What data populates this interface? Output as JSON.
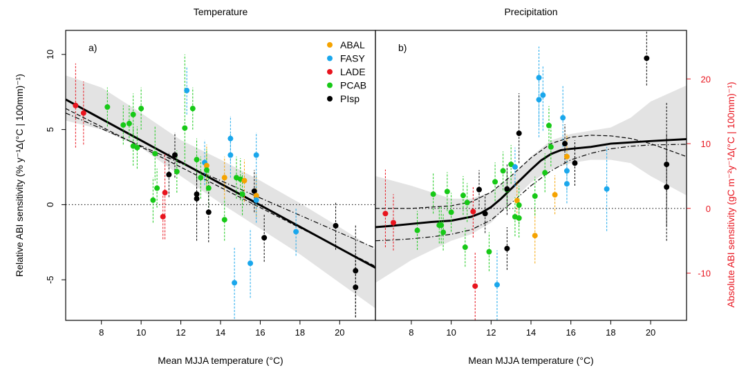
{
  "colors": {
    "ABAL": "#f5a300",
    "FASY": "#1aa7ec",
    "LADE": "#e8141e",
    "PCAB": "#17c917",
    "PIsp": "#000000",
    "right_axis": "#e8141e",
    "band": "#e3e3e3"
  },
  "chart_data": [
    {
      "type": "scatter",
      "panel": "a)",
      "title": "Temperature",
      "xlabel": "Mean MJJA temperature (°C)",
      "ylabel": "Relative ABI sensitivity (% y⁻¹Δ(°C | 100mm)⁻¹)",
      "xlim": [
        6.2,
        21.8
      ],
      "ylim": [
        -7.7,
        11.6
      ],
      "xticks": [
        8,
        10,
        12,
        14,
        16,
        18,
        20
      ],
      "yticks": [
        -5,
        0,
        5,
        10
      ],
      "reference_line_y": 0,
      "legend": {
        "position": "top-right",
        "entries": [
          "ABAL",
          "FASY",
          "LADE",
          "PCAB",
          "PIsp"
        ]
      },
      "points": [
        {
          "s": "LADE",
          "x": 6.7,
          "y": 6.6,
          "lo": 3.8,
          "hi": 9.4
        },
        {
          "s": "LADE",
          "x": 7.1,
          "y": 6.1,
          "lo": 4.0,
          "hi": 8.2
        },
        {
          "s": "PCAB",
          "x": 8.3,
          "y": 6.5,
          "lo": 5.2,
          "hi": 7.8
        },
        {
          "s": "PCAB",
          "x": 9.1,
          "y": 5.3,
          "lo": 4.0,
          "hi": 6.6
        },
        {
          "s": "PCAB",
          "x": 9.4,
          "y": 5.4,
          "lo": 4.2,
          "hi": 6.6
        },
        {
          "s": "PCAB",
          "x": 9.6,
          "y": 6.0,
          "lo": 4.6,
          "hi": 7.4
        },
        {
          "s": "PCAB",
          "x": 9.8,
          "y": 3.8,
          "lo": 2.4,
          "hi": 5.2
        },
        {
          "s": "PCAB",
          "x": 9.6,
          "y": 3.9,
          "lo": 2.6,
          "hi": 5.2
        },
        {
          "s": "PCAB",
          "x": 10.0,
          "y": 6.4,
          "lo": 5.0,
          "hi": 7.8
        },
        {
          "s": "PCAB",
          "x": 10.7,
          "y": 3.4,
          "lo": 1.6,
          "hi": 5.2
        },
        {
          "s": "PCAB",
          "x": 10.6,
          "y": 0.3,
          "lo": -1.2,
          "hi": 1.8
        },
        {
          "s": "PCAB",
          "x": 10.8,
          "y": 1.1,
          "lo": -0.2,
          "hi": 2.4
        },
        {
          "s": "LADE",
          "x": 11.1,
          "y": -0.8,
          "lo": -2.3,
          "hi": 0.7
        },
        {
          "s": "LADE",
          "x": 11.2,
          "y": 0.8,
          "lo": -2.3,
          "hi": 3.4
        },
        {
          "s": "PIsp",
          "x": 11.4,
          "y": 2.0,
          "lo": 0.5,
          "hi": 3.5
        },
        {
          "s": "PIsp",
          "x": 11.7,
          "y": 3.3,
          "lo": 1.8,
          "hi": 4.8
        },
        {
          "s": "PCAB",
          "x": 11.8,
          "y": 2.2,
          "lo": 0.8,
          "hi": 3.6
        },
        {
          "s": "FASY",
          "x": 12.3,
          "y": 7.6,
          "lo": 6.0,
          "hi": 9.2
        },
        {
          "s": "PCAB",
          "x": 12.2,
          "y": 5.1,
          "lo": 2.6,
          "hi": 10.0
        },
        {
          "s": "PCAB",
          "x": 12.6,
          "y": 6.4,
          "lo": 5.0,
          "hi": 7.8
        },
        {
          "s": "PCAB",
          "x": 12.8,
          "y": 3.0,
          "lo": 1.6,
          "hi": 4.4
        },
        {
          "s": "PIsp",
          "x": 12.8,
          "y": 0.7,
          "lo": -2.4,
          "hi": 2.2
        },
        {
          "s": "PIsp",
          "x": 12.8,
          "y": 0.4,
          "lo": -1.0,
          "hi": 1.8
        },
        {
          "s": "PCAB",
          "x": 13.0,
          "y": 1.8,
          "lo": 0.4,
          "hi": 3.2
        },
        {
          "s": "FASY",
          "x": 13.2,
          "y": 2.8,
          "lo": 1.3,
          "hi": 4.3
        },
        {
          "s": "ABAL",
          "x": 13.3,
          "y": 2.6,
          "lo": 1.2,
          "hi": 4.0
        },
        {
          "s": "PCAB",
          "x": 13.3,
          "y": 2.3,
          "lo": 0.9,
          "hi": 3.7
        },
        {
          "s": "PCAB",
          "x": 13.4,
          "y": 1.1,
          "lo": -0.2,
          "hi": 2.4
        },
        {
          "s": "PIsp",
          "x": 13.4,
          "y": -0.5,
          "lo": -2.5,
          "hi": 1.5
        },
        {
          "s": "ABAL",
          "x": 14.2,
          "y": 1.8,
          "lo": 0.4,
          "hi": 3.2
        },
        {
          "s": "PCAB",
          "x": 14.2,
          "y": -1.0,
          "lo": -2.4,
          "hi": 0.4
        },
        {
          "s": "FASY",
          "x": 14.5,
          "y": 4.4,
          "lo": 2.9,
          "hi": 5.9
        },
        {
          "s": "FASY",
          "x": 14.5,
          "y": 3.3,
          "lo": 1.8,
          "hi": 4.8
        },
        {
          "s": "PCAB",
          "x": 14.8,
          "y": 1.8,
          "lo": 0.4,
          "hi": 3.2
        },
        {
          "s": "FASY",
          "x": 14.7,
          "y": -5.2,
          "lo": -7.6,
          "hi": -2.8
        },
        {
          "s": "PCAB",
          "x": 15.0,
          "y": 1.7,
          "lo": 0.3,
          "hi": 3.1
        },
        {
          "s": "PCAB",
          "x": 15.1,
          "y": 0.7,
          "lo": -0.7,
          "hi": 2.1
        },
        {
          "s": "ABAL",
          "x": 15.2,
          "y": 1.6,
          "lo": 0.2,
          "hi": 3.0
        },
        {
          "s": "FASY",
          "x": 15.5,
          "y": -3.9,
          "lo": -6.2,
          "hi": -1.6
        },
        {
          "s": "PIsp",
          "x": 15.7,
          "y": 0.9,
          "lo": -0.5,
          "hi": 2.3
        },
        {
          "s": "ABAL",
          "x": 15.8,
          "y": 0.6,
          "lo": -0.8,
          "hi": 2.0
        },
        {
          "s": "FASY",
          "x": 15.8,
          "y": 0.3,
          "lo": -1.2,
          "hi": 1.8
        },
        {
          "s": "FASY",
          "x": 15.8,
          "y": 3.3,
          "lo": 1.8,
          "hi": 4.8
        },
        {
          "s": "PIsp",
          "x": 16.2,
          "y": -2.2,
          "lo": -3.8,
          "hi": -0.6
        },
        {
          "s": "FASY",
          "x": 17.8,
          "y": -1.8,
          "lo": -3.4,
          "hi": -0.2
        },
        {
          "s": "PIsp",
          "x": 19.8,
          "y": -1.4,
          "lo": -3.0,
          "hi": 0.2
        },
        {
          "s": "PIsp",
          "x": 20.8,
          "y": -4.4,
          "lo": -7.5,
          "hi": -1.3
        },
        {
          "s": "PIsp",
          "x": 20.8,
          "y": -5.5,
          "lo": -7.5,
          "hi": -3.5
        }
      ],
      "fit": {
        "x": [
          6.2,
          21.8
        ],
        "y": [
          7.0,
          -4.2
        ]
      },
      "band_upper": {
        "x": [
          6.2,
          8,
          10,
          12,
          14,
          16,
          18,
          20,
          21.8
        ],
        "y": [
          8.6,
          7.8,
          6.1,
          4.3,
          3.0,
          1.6,
          0.1,
          -1.5,
          -3.0
        ]
      },
      "band_lower": {
        "x": [
          6.2,
          8,
          10,
          12,
          14,
          16,
          18,
          20,
          21.8
        ],
        "y": [
          5.6,
          5.0,
          3.8,
          1.9,
          0.1,
          -1.6,
          -3.3,
          -5.2,
          -6.9
        ]
      },
      "dashed": {
        "x": [
          6.2,
          21.8
        ],
        "y": [
          6.4,
          -4.1
        ]
      },
      "dashdot": {
        "x": [
          6.2,
          21.8
        ],
        "y": [
          6.1,
          -2.9
        ]
      }
    },
    {
      "type": "scatter",
      "panel": "b)",
      "title": "Precipitation",
      "xlabel": "Mean MJJA temperature (°C)",
      "ylabel_right": "Absolute ABI sensitivity (gC m⁻²y⁻¹Δ(°C | 100mm)⁻¹)",
      "xlim": [
        6.2,
        21.8
      ],
      "ylim": [
        -17.3,
        27.5
      ],
      "xticks": [
        8,
        10,
        12,
        14,
        16,
        18,
        20
      ],
      "yticks_right": [
        -10,
        0,
        10,
        20
      ],
      "reference_line_y": 0,
      "points": [
        {
          "s": "LADE",
          "x": 6.7,
          "y": -0.8,
          "lo": -6.0,
          "hi": 6.0
        },
        {
          "s": "LADE",
          "x": 7.1,
          "y": -2.2,
          "lo": -6.5,
          "hi": 2.2
        },
        {
          "s": "PCAB",
          "x": 8.3,
          "y": -3.4,
          "lo": -6.4,
          "hi": -0.4
        },
        {
          "s": "PCAB",
          "x": 9.1,
          "y": 2.2,
          "lo": -0.8,
          "hi": 5.5
        },
        {
          "s": "PCAB",
          "x": 9.4,
          "y": -2.6,
          "lo": -5.4,
          "hi": 0.2
        },
        {
          "s": "PCAB",
          "x": 9.5,
          "y": -2.6,
          "lo": -5.4,
          "hi": 0.2
        },
        {
          "s": "PCAB",
          "x": 9.6,
          "y": -3.7,
          "lo": -6.5,
          "hi": -0.9
        },
        {
          "s": "PCAB",
          "x": 9.8,
          "y": 2.6,
          "lo": -0.4,
          "hi": 5.6
        },
        {
          "s": "PCAB",
          "x": 10.0,
          "y": -0.6,
          "lo": -3.6,
          "hi": 2.4
        },
        {
          "s": "PCAB",
          "x": 10.6,
          "y": 2.0,
          "lo": -1.0,
          "hi": 5.0
        },
        {
          "s": "PCAB",
          "x": 10.7,
          "y": -6.0,
          "lo": -9.0,
          "hi": -3.0
        },
        {
          "s": "PCAB",
          "x": 10.8,
          "y": 0.9,
          "lo": -2.1,
          "hi": 3.9
        },
        {
          "s": "LADE",
          "x": 11.1,
          "y": -0.5,
          "lo": -4.5,
          "hi": 3.5
        },
        {
          "s": "LADE",
          "x": 11.2,
          "y": -12.0,
          "lo": -17.3,
          "hi": -6.8
        },
        {
          "s": "PIsp",
          "x": 11.4,
          "y": 2.9,
          "lo": -0.1,
          "hi": 5.9
        },
        {
          "s": "PIsp",
          "x": 11.7,
          "y": -0.8,
          "lo": -3.8,
          "hi": 2.2
        },
        {
          "s": "PCAB",
          "x": 11.9,
          "y": -6.7,
          "lo": -9.7,
          "hi": -3.7
        },
        {
          "s": "PCAB",
          "x": 12.2,
          "y": 4.1,
          "lo": 1.1,
          "hi": 7.1
        },
        {
          "s": "FASY",
          "x": 12.3,
          "y": -11.8,
          "lo": -17.3,
          "hi": -6.5
        },
        {
          "s": "PCAB",
          "x": 12.6,
          "y": 5.8,
          "lo": 2.8,
          "hi": 8.8
        },
        {
          "s": "PCAB",
          "x": 12.8,
          "y": 2.9,
          "lo": -0.1,
          "hi": 5.9
        },
        {
          "s": "PIsp",
          "x": 12.8,
          "y": 3.0,
          "lo": -1.0,
          "hi": 7.0
        },
        {
          "s": "PIsp",
          "x": 12.8,
          "y": -6.2,
          "lo": -9.5,
          "hi": -2.9
        },
        {
          "s": "PCAB",
          "x": 13.0,
          "y": 6.8,
          "lo": 3.8,
          "hi": 9.8
        },
        {
          "s": "FASY",
          "x": 13.2,
          "y": 6.4,
          "lo": 3.4,
          "hi": 9.4
        },
        {
          "s": "PCAB",
          "x": 13.2,
          "y": -1.3,
          "lo": -4.3,
          "hi": 1.7
        },
        {
          "s": "ABAL",
          "x": 13.3,
          "y": 1.2,
          "lo": -1.8,
          "hi": 4.2
        },
        {
          "s": "PCAB",
          "x": 13.4,
          "y": -1.5,
          "lo": -4.5,
          "hi": 1.5
        },
        {
          "s": "PCAB",
          "x": 13.4,
          "y": 0.5,
          "lo": -2.5,
          "hi": 3.5
        },
        {
          "s": "PIsp",
          "x": 13.4,
          "y": 11.6,
          "lo": 7.0,
          "hi": 17.8
        },
        {
          "s": "ABAL",
          "x": 14.2,
          "y": -4.2,
          "lo": -8.5,
          "hi": 0.1
        },
        {
          "s": "PCAB",
          "x": 14.2,
          "y": 1.9,
          "lo": -1.1,
          "hi": 4.9
        },
        {
          "s": "FASY",
          "x": 14.4,
          "y": 20.2,
          "lo": 13.0,
          "hi": 25.0
        },
        {
          "s": "FASY",
          "x": 14.4,
          "y": 16.8,
          "lo": 11.0,
          "hi": 21.0
        },
        {
          "s": "FASY",
          "x": 14.6,
          "y": 17.5,
          "lo": 12.0,
          "hi": 22.0
        },
        {
          "s": "PCAB",
          "x": 14.7,
          "y": 5.5,
          "lo": 2.5,
          "hi": 8.5
        },
        {
          "s": "PCAB",
          "x": 14.9,
          "y": 12.8,
          "lo": 9.8,
          "hi": 15.8
        },
        {
          "s": "PCAB",
          "x": 15.0,
          "y": 9.5,
          "lo": 6.5,
          "hi": 12.5
        },
        {
          "s": "ABAL",
          "x": 15.2,
          "y": 2.1,
          "lo": -0.9,
          "hi": 5.1
        },
        {
          "s": "FASY",
          "x": 15.6,
          "y": 14.0,
          "lo": 9.5,
          "hi": 19.0
        },
        {
          "s": "PIsp",
          "x": 15.7,
          "y": 10.0,
          "lo": 7.0,
          "hi": 13.0
        },
        {
          "s": "ABAL",
          "x": 15.8,
          "y": 8.0,
          "lo": 4.5,
          "hi": 11.5
        },
        {
          "s": "FASY",
          "x": 15.8,
          "y": 5.8,
          "lo": 2.8,
          "hi": 8.8
        },
        {
          "s": "FASY",
          "x": 15.8,
          "y": 3.8,
          "lo": 0.8,
          "hi": 6.8
        },
        {
          "s": "PIsp",
          "x": 16.2,
          "y": 7.0,
          "lo": 3.5,
          "hi": 10.5
        },
        {
          "s": "FASY",
          "x": 17.8,
          "y": 3.0,
          "lo": -3.5,
          "hi": 9.5
        },
        {
          "s": "PIsp",
          "x": 19.8,
          "y": 23.2,
          "lo": 19.0,
          "hi": 27.5
        },
        {
          "s": "PIsp",
          "x": 20.8,
          "y": 6.8,
          "lo": -2.7,
          "hi": 16.3
        },
        {
          "s": "PIsp",
          "x": 20.8,
          "y": 3.3,
          "lo": -5.0,
          "hi": 11.6
        }
      ],
      "fit": {
        "x": [
          6.2,
          7,
          8,
          9,
          10,
          11,
          11.5,
          12,
          12.5,
          13,
          13.5,
          14,
          14.5,
          15,
          15.5,
          16,
          17,
          18,
          19,
          20,
          21.8
        ],
        "y": [
          -2.9,
          -2.7,
          -2.4,
          -2.1,
          -1.9,
          -1.3,
          -0.7,
          0.2,
          1.5,
          3.0,
          4.5,
          6.0,
          7.4,
          8.4,
          9.0,
          9.2,
          9.5,
          10.0,
          10.2,
          10.4,
          10.7
        ]
      },
      "band_upper": {
        "x": [
          6.2,
          8,
          10,
          11,
          12,
          13,
          14,
          15,
          16,
          17,
          18,
          19,
          20,
          21.8
        ],
        "y": [
          5.0,
          3.5,
          1.5,
          1.5,
          2.5,
          5.0,
          8.0,
          10.5,
          11.5,
          12.0,
          12.5,
          14.0,
          16.5,
          19.0
        ]
      },
      "band_lower": {
        "x": [
          6.2,
          8,
          10,
          11,
          12,
          13,
          14,
          15,
          16,
          17,
          18,
          19,
          20,
          21.8
        ],
        "y": [
          -11.5,
          -8.0,
          -5.0,
          -4.0,
          -2.2,
          1.0,
          4.0,
          6.0,
          7.0,
          7.5,
          7.5,
          7.0,
          5.0,
          2.0
        ]
      },
      "dashed": {
        "x": [
          6.2,
          7,
          8,
          9,
          10,
          11,
          12,
          13,
          14,
          15,
          16,
          17,
          18,
          19,
          20,
          21.8
        ],
        "y": [
          0.0,
          0.0,
          0.0,
          0.2,
          0.4,
          1.0,
          2.5,
          5.0,
          7.8,
          10.0,
          11.0,
          11.3,
          11.2,
          10.8,
          10.0,
          8.0
        ]
      },
      "dashdot": {
        "x": [
          6.2,
          7,
          8,
          9,
          10,
          11,
          12,
          13,
          14,
          15,
          16,
          17,
          18,
          19,
          20,
          21.8
        ],
        "y": [
          -5.0,
          -4.9,
          -4.7,
          -4.4,
          -4.0,
          -3.3,
          -1.8,
          0.8,
          3.5,
          5.8,
          7.5,
          8.5,
          9.2,
          9.6,
          9.8,
          9.9
        ]
      }
    }
  ]
}
